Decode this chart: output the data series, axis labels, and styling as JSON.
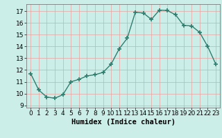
{
  "x": [
    0,
    1,
    2,
    3,
    4,
    5,
    6,
    7,
    8,
    9,
    10,
    11,
    12,
    13,
    14,
    15,
    16,
    17,
    18,
    19,
    20,
    21,
    22,
    23
  ],
  "y": [
    11.7,
    10.3,
    9.7,
    9.6,
    9.9,
    11.0,
    11.2,
    11.5,
    11.6,
    11.8,
    12.5,
    13.8,
    14.7,
    16.9,
    16.85,
    16.3,
    17.1,
    17.05,
    16.7,
    15.8,
    15.75,
    15.2,
    14.0,
    12.5
  ],
  "xlabel": "Humidex (Indice chaleur)",
  "xlim": [
    -0.5,
    23.5
  ],
  "ylim": [
    8.8,
    17.6
  ],
  "yticks": [
    9,
    10,
    11,
    12,
    13,
    14,
    15,
    16,
    17
  ],
  "xticks": [
    0,
    1,
    2,
    3,
    4,
    5,
    6,
    7,
    8,
    9,
    10,
    11,
    12,
    13,
    14,
    15,
    16,
    17,
    18,
    19,
    20,
    21,
    22,
    23
  ],
  "line_color": "#2e7d6e",
  "bg_color": "#cceee8",
  "grid_color": "#e8a0a0",
  "marker": "+",
  "markersize": 4,
  "markeredgewidth": 1.2,
  "linewidth": 1.0,
  "tick_fontsize": 6.5,
  "xlabel_fontsize": 7.5
}
